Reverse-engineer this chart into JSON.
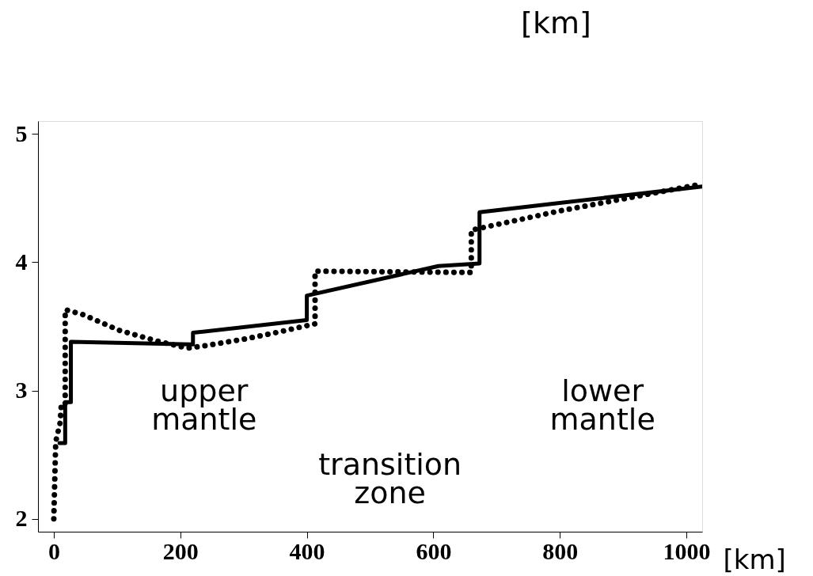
{
  "chart_data": {
    "type": "line",
    "xlabel": "[km]",
    "xlim": [
      -25,
      1025
    ],
    "xticks": [
      0,
      200,
      400,
      600,
      800,
      1000
    ],
    "ylim": [
      1.9,
      5.1
    ],
    "yticks": [
      2,
      3,
      4,
      5
    ],
    "grid": false,
    "marker": "none",
    "series": [
      {
        "color": "#000000",
        "line_style": "solid",
        "x": [
          9,
          18,
          18,
          27,
          27,
          216,
          220,
          220,
          400,
          400,
          608,
          673,
          673,
          1025
        ],
        "values": [
          2.59,
          2.59,
          2.91,
          2.91,
          3.38,
          3.36,
          3.36,
          3.45,
          3.55,
          3.74,
          3.97,
          3.99,
          4.39,
          4.59
        ]
      },
      {
        "color": "#000000",
        "line_style": "dotted",
        "x": [
          0,
          3,
          10,
          12,
          18,
          18,
          47,
          103,
          160,
          211,
          240,
          300,
          350,
          386,
          413,
          413,
          660,
          660,
          800,
          1025
        ],
        "values": [
          2.0,
          2.6,
          2.75,
          2.9,
          2.9,
          3.63,
          3.59,
          3.47,
          3.39,
          3.33,
          3.35,
          3.4,
          3.45,
          3.49,
          3.52,
          3.93,
          3.92,
          4.25,
          4.4,
          4.61
        ]
      }
    ],
    "annotations": [
      "upper\nmantle",
      "transition\nzone",
      "lower\nmantle",
      "[km]"
    ]
  }
}
